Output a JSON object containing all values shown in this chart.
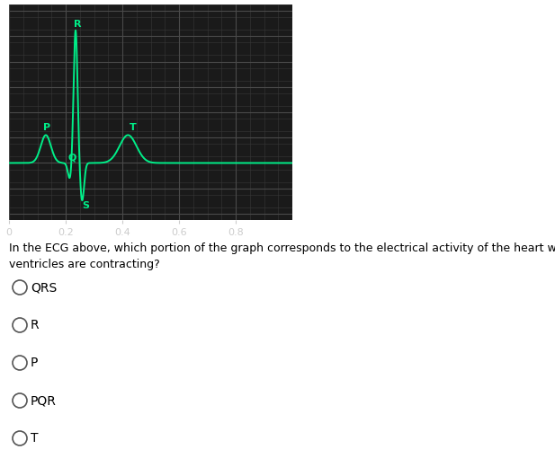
{
  "ecg_color": "#00ee88",
  "bg_color": "#1a1a1a",
  "grid_minor_color": "#383838",
  "grid_major_color": "#4a4a4a",
  "xlim": [
    0.0,
    1.0
  ],
  "ylim": [
    -0.45,
    1.25
  ],
  "xticks": [
    0,
    0.2,
    0.4,
    0.6,
    0.8
  ],
  "question_text_line1": "In the ECG above, which portion of the graph corresponds to the electrical activity of the heart when the",
  "question_text_line2": "ventricles are contracting?",
  "options": [
    "QRS",
    "R",
    "P",
    "PQR",
    "T"
  ],
  "ecg_label_color": "#00ee88",
  "label_fontsize": 8,
  "tick_fontsize": 8,
  "tick_color": "#cccccc",
  "p_wave": {
    "mu": 0.13,
    "sigma": 0.018,
    "amp": 0.22
  },
  "q_wave": {
    "mu": 0.215,
    "sigma": 0.007,
    "amp": -0.13
  },
  "r_wave": {
    "mu": 0.235,
    "sigma": 0.007,
    "amp": 1.05
  },
  "s_wave": {
    "mu": 0.258,
    "sigma": 0.007,
    "amp": -0.3
  },
  "t_wave": {
    "mu": 0.42,
    "sigma": 0.03,
    "amp": 0.22
  },
  "ecg_linewidth": 1.4,
  "fig_width": 6.17,
  "fig_height": 5.3
}
